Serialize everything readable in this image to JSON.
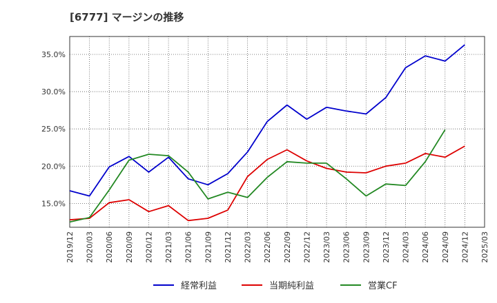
{
  "chart_data": {
    "type": "line",
    "title": "[6777]  マージンの推移",
    "xlabel": "",
    "ylabel": "",
    "ylim": [
      11.8,
      37.4
    ],
    "yticks": [
      15,
      20,
      25,
      30,
      35
    ],
    "ytick_labels": [
      "15.0%",
      "20.0%",
      "25.0%",
      "30.0%",
      "35.0%"
    ],
    "x": [
      "2019/12",
      "2020/03",
      "2020/06",
      "2020/09",
      "2020/12",
      "2021/03",
      "2021/06",
      "2021/09",
      "2021/12",
      "2022/03",
      "2022/06",
      "2022/09",
      "2022/12",
      "2023/03",
      "2023/06",
      "2023/09",
      "2023/12",
      "2024/03",
      "2024/06",
      "2024/09",
      "2024/12",
      "2025/03"
    ],
    "grid": true,
    "legend_position": "bottom",
    "series": [
      {
        "name": "経常利益",
        "color": "#0000cc",
        "values": [
          16.7,
          16.0,
          19.9,
          21.3,
          19.2,
          21.2,
          18.3,
          17.5,
          19.0,
          21.9,
          26.0,
          28.2,
          26.3,
          27.9,
          27.4,
          27.0,
          29.2,
          33.2,
          34.8,
          34.1,
          36.3,
          null
        ]
      },
      {
        "name": "当期純利益",
        "color": "#dd0000",
        "values": [
          12.8,
          13.0,
          15.1,
          15.5,
          13.9,
          14.7,
          12.7,
          13.0,
          14.1,
          18.6,
          20.9,
          22.2,
          20.7,
          19.7,
          19.2,
          19.1,
          20.0,
          20.4,
          21.7,
          21.2,
          22.7,
          null
        ]
      },
      {
        "name": "営業CF",
        "color": "#228822",
        "values": [
          12.5,
          13.1,
          16.8,
          20.8,
          21.6,
          21.4,
          19.2,
          15.6,
          16.5,
          15.8,
          18.5,
          20.6,
          20.4,
          20.4,
          18.3,
          16.0,
          17.6,
          17.4,
          20.6,
          24.9,
          null,
          null
        ]
      }
    ]
  }
}
